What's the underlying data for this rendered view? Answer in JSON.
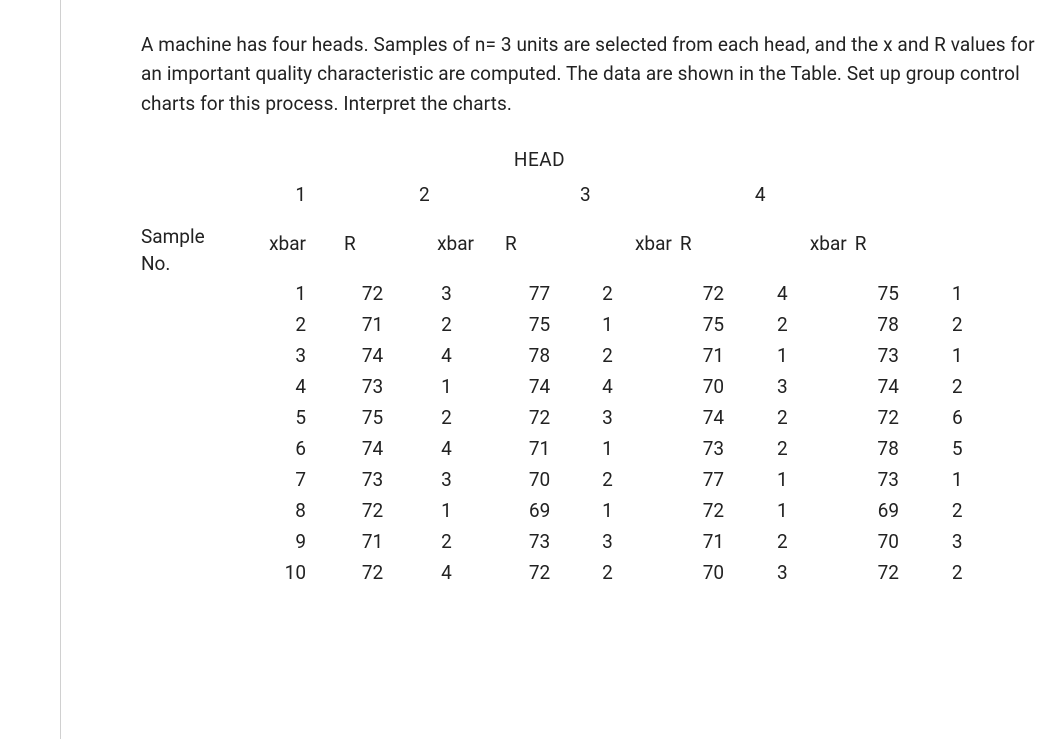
{
  "intro": "A machine has four heads. Samples of n= 3 units are selected from each head, and the x and R values for an important quality characteristic are computed. The data are shown in the Table. Set up group control charts for this process. Interpret the charts.",
  "labels": {
    "head": "HEAD",
    "sample_no_line1": "Sample",
    "sample_no_line2": "No.",
    "xbar": "xbar",
    "r": "R"
  },
  "heads": [
    "1",
    "2",
    "3",
    "4"
  ],
  "rows": [
    {
      "n": "1",
      "h1_x": "72",
      "h1_r": "3",
      "h2_x": "77",
      "h2_r": "2",
      "h3_x": "72",
      "h3_r": "4",
      "h4_x": "75",
      "h4_r": "1"
    },
    {
      "n": "2",
      "h1_x": "71",
      "h1_r": "2",
      "h2_x": "75",
      "h2_r": "1",
      "h3_x": "75",
      "h3_r": "2",
      "h4_x": "78",
      "h4_r": "2"
    },
    {
      "n": "3",
      "h1_x": "74",
      "h1_r": "4",
      "h2_x": "78",
      "h2_r": "2",
      "h3_x": "71",
      "h3_r": "1",
      "h4_x": "73",
      "h4_r": "1"
    },
    {
      "n": "4",
      "h1_x": "73",
      "h1_r": "1",
      "h2_x": "74",
      "h2_r": "4",
      "h3_x": "70",
      "h3_r": "3",
      "h4_x": "74",
      "h4_r": "2"
    },
    {
      "n": "5",
      "h1_x": "75",
      "h1_r": "2",
      "h2_x": "72",
      "h2_r": "3",
      "h3_x": "74",
      "h3_r": "2",
      "h4_x": "72",
      "h4_r": "6"
    },
    {
      "n": "6",
      "h1_x": "74",
      "h1_r": "4",
      "h2_x": "71",
      "h2_r": "1",
      "h3_x": "73",
      "h3_r": "2",
      "h4_x": "78",
      "h4_r": "5"
    },
    {
      "n": "7",
      "h1_x": "73",
      "h1_r": "3",
      "h2_x": "70",
      "h2_r": "2",
      "h3_x": "77",
      "h3_r": "1",
      "h4_x": "73",
      "h4_r": "1"
    },
    {
      "n": "8",
      "h1_x": "72",
      "h1_r": "1",
      "h2_x": "69",
      "h2_r": "1",
      "h3_x": "72",
      "h3_r": "1",
      "h4_x": "69",
      "h4_r": "2"
    },
    {
      "n": "9",
      "h1_x": "71",
      "h1_r": "2",
      "h2_x": "73",
      "h2_r": "3",
      "h3_x": "71",
      "h3_r": "2",
      "h4_x": "70",
      "h4_r": "3"
    },
    {
      "n": "10",
      "h1_x": "72",
      "h1_r": "4",
      "h2_x": "72",
      "h2_r": "2",
      "h3_x": "70",
      "h3_r": "3",
      "h4_x": "72",
      "h4_r": "2"
    }
  ],
  "style": {
    "text_color": "#222222",
    "background": "#ffffff",
    "border_color": "#d0d0d0",
    "font_size_body": 19,
    "line_height": 1.55
  }
}
